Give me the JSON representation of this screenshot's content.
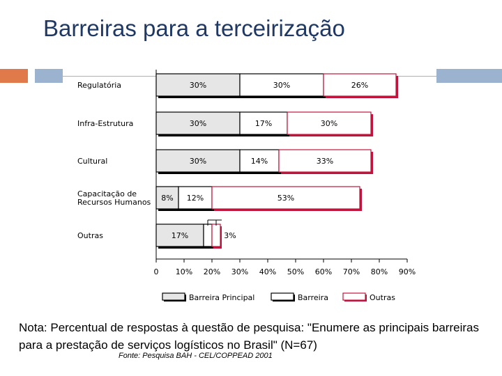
{
  "slide": {
    "title": "Barreiras para a terceirização",
    "note": "Nota: Percentual de respostas à questão de pesquisa: \"Enumere as principais barreiras para a prestação de serviços logísticos no Brasil\" (N=67)",
    "source": "Fonte: Pesquisa BAH - CEL/COPPEAD 2001"
  },
  "colors": {
    "title": "#1f3864",
    "accent_orange": "#e07a4a",
    "accent_blue": "#9cb3cf",
    "principal_fill": "#e6e6e6",
    "outras_border": "#c0143c",
    "barreira_border": "#000000"
  },
  "chart_data": {
    "type": "bar",
    "orientation": "horizontal",
    "stacked": true,
    "categories": [
      "Regulatória",
      "Infra-Estrutura",
      "Cultural",
      "Capacitação de Recursos Humanos",
      "Outras"
    ],
    "category_lines": [
      [
        "Regulatória"
      ],
      [
        "Infra-Estrutura"
      ],
      [
        "Cultural"
      ],
      [
        "Capacitação de",
        "Recursos Humanos"
      ],
      [
        "Outras"
      ]
    ],
    "series": [
      {
        "name": "Barreira Principal",
        "values": [
          30,
          30,
          30,
          8,
          17
        ],
        "labels": [
          "30%",
          "30%",
          "30%",
          "8%",
          "17%"
        ]
      },
      {
        "name": "Barreira",
        "values": [
          30,
          17,
          14,
          12,
          3
        ],
        "labels": [
          "30%",
          "17%",
          "14%",
          "12%",
          ""
        ]
      },
      {
        "name": "Outras",
        "values": [
          26,
          30,
          33,
          53,
          3
        ],
        "labels": [
          "26%",
          "30%",
          "33%",
          "53%",
          "3%"
        ]
      }
    ],
    "xlim": [
      0,
      90
    ],
    "xticks": [
      0,
      10,
      20,
      30,
      40,
      50,
      60,
      70,
      80,
      90
    ],
    "xtick_labels": [
      "0",
      "10%",
      "20%",
      "30%",
      "40%",
      "50%",
      "60%",
      "70%",
      "80%",
      "90%"
    ],
    "legend": [
      "Barreira Principal",
      "Barreira",
      "Outras"
    ],
    "legend_position": "bottom",
    "title": "",
    "xlabel": "",
    "ylabel": ""
  }
}
